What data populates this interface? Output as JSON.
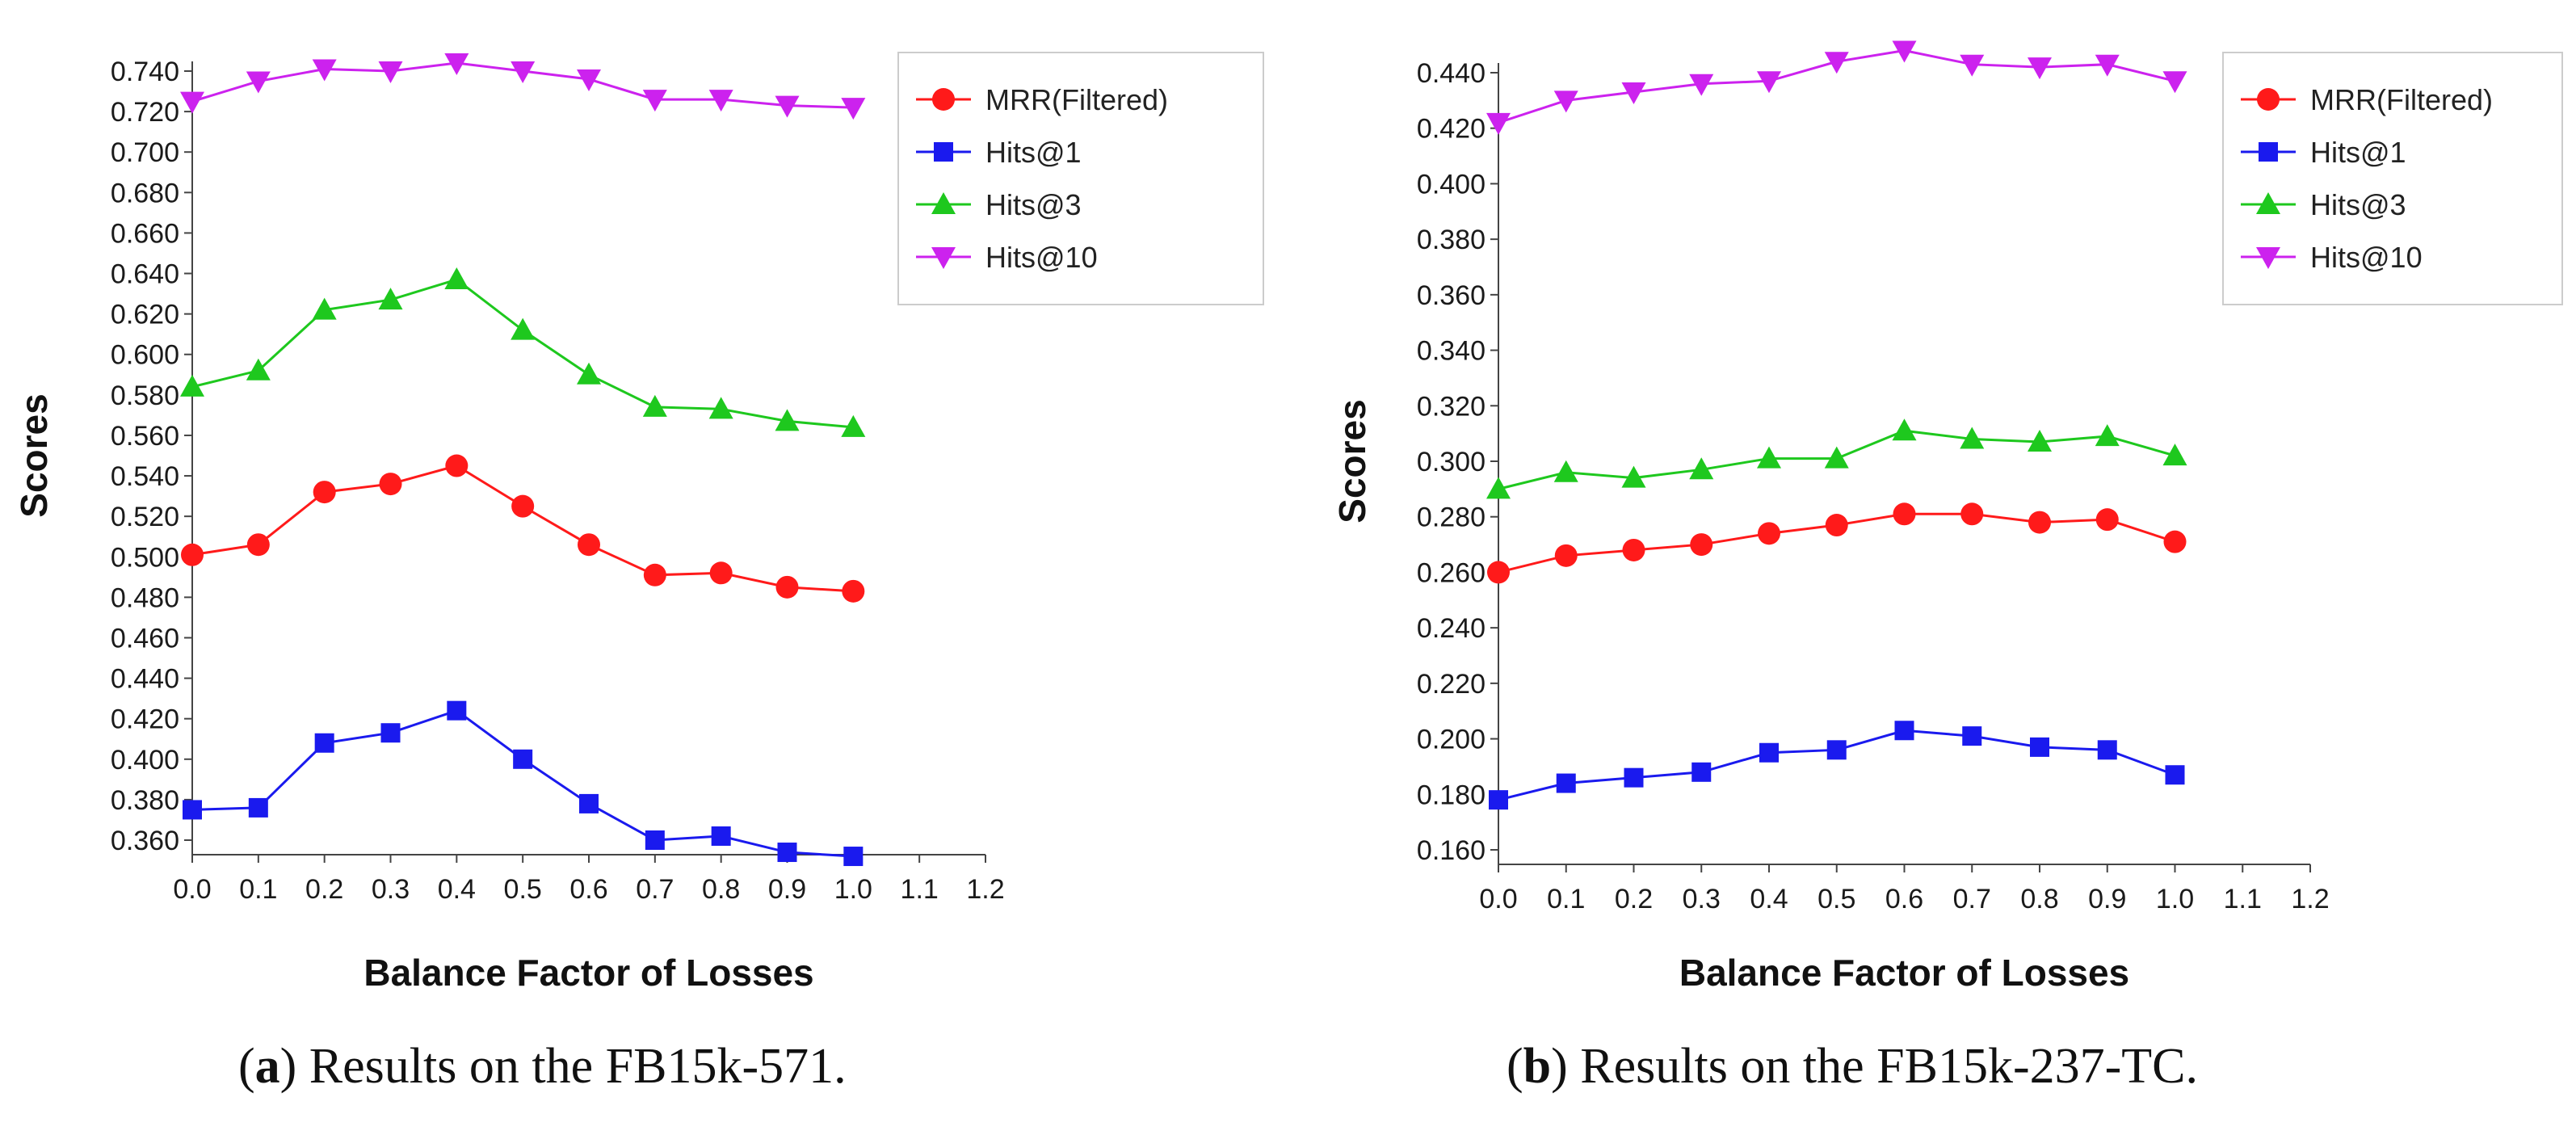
{
  "chart_data": [
    {
      "type": "line",
      "panel": "a",
      "xlabel": "Balance Factor of Losses",
      "ylabel": "Scores",
      "xlim": [
        0.0,
        1.2
      ],
      "ylim": [
        0.36,
        0.74
      ],
      "x_ticks": [
        "0.0",
        "0.1",
        "0.2",
        "0.3",
        "0.4",
        "0.5",
        "0.6",
        "0.7",
        "0.8",
        "0.9",
        "1.0",
        "1.1",
        "1.2"
      ],
      "y_ticks": [
        "0.360",
        "0.380",
        "0.400",
        "0.420",
        "0.440",
        "0.460",
        "0.480",
        "0.500",
        "0.520",
        "0.540",
        "0.560",
        "0.580",
        "0.600",
        "0.620",
        "0.640",
        "0.660",
        "0.680",
        "0.700",
        "0.720",
        "0.740"
      ],
      "x": [
        0.0,
        0.1,
        0.2,
        0.3,
        0.4,
        0.5,
        0.6,
        0.7,
        0.8,
        0.9,
        1.0
      ],
      "legend_position": "top-right",
      "series": [
        {
          "name": "MRR(Filtered)",
          "color": "#ff1a1a",
          "marker": "circle",
          "values": [
            0.501,
            0.506,
            0.532,
            0.536,
            0.545,
            0.525,
            0.506,
            0.491,
            0.492,
            0.485,
            0.483
          ]
        },
        {
          "name": "Hits@1",
          "color": "#1a1aee",
          "marker": "square",
          "values": [
            0.375,
            0.376,
            0.408,
            0.413,
            0.424,
            0.4,
            0.378,
            0.36,
            0.362,
            0.354,
            0.352
          ]
        },
        {
          "name": "Hits@3",
          "color": "#1ec81e",
          "marker": "triangle-up",
          "values": [
            0.584,
            0.592,
            0.622,
            0.627,
            0.637,
            0.612,
            0.59,
            0.574,
            0.573,
            0.567,
            0.564
          ]
        },
        {
          "name": "Hits@10",
          "color": "#cc22ee",
          "marker": "triangle-down",
          "values": [
            0.725,
            0.735,
            0.741,
            0.74,
            0.744,
            0.74,
            0.736,
            0.726,
            0.726,
            0.723,
            0.722
          ]
        }
      ]
    },
    {
      "type": "line",
      "panel": "b",
      "xlabel": "Balance Factor of Losses",
      "ylabel": "Scores",
      "xlim": [
        0.0,
        1.2
      ],
      "ylim": [
        0.16,
        0.44
      ],
      "x_ticks": [
        "0.0",
        "0.1",
        "0.2",
        "0.3",
        "0.4",
        "0.5",
        "0.6",
        "0.7",
        "0.8",
        "0.9",
        "1.0",
        "1.1",
        "1.2"
      ],
      "y_ticks": [
        "0.160",
        "0.180",
        "0.200",
        "0.220",
        "0.240",
        "0.260",
        "0.280",
        "0.300",
        "0.320",
        "0.340",
        "0.360",
        "0.380",
        "0.400",
        "0.420",
        "0.440"
      ],
      "x": [
        0.0,
        0.1,
        0.2,
        0.3,
        0.4,
        0.5,
        0.6,
        0.7,
        0.8,
        0.9,
        1.0
      ],
      "legend_position": "top-right",
      "series": [
        {
          "name": "MRR(Filtered)",
          "color": "#ff1a1a",
          "marker": "circle",
          "values": [
            0.26,
            0.266,
            0.268,
            0.27,
            0.274,
            0.277,
            0.281,
            0.281,
            0.278,
            0.279,
            0.271
          ]
        },
        {
          "name": "Hits@1",
          "color": "#1a1aee",
          "marker": "square",
          "values": [
            0.178,
            0.184,
            0.186,
            0.188,
            0.195,
            0.196,
            0.203,
            0.201,
            0.197,
            0.196,
            0.187
          ]
        },
        {
          "name": "Hits@3",
          "color": "#1ec81e",
          "marker": "triangle-up",
          "values": [
            0.29,
            0.296,
            0.294,
            0.297,
            0.301,
            0.301,
            0.311,
            0.308,
            0.307,
            0.309,
            0.302
          ]
        },
        {
          "name": "Hits@10",
          "color": "#cc22ee",
          "marker": "triangle-down",
          "values": [
            0.422,
            0.43,
            0.433,
            0.436,
            0.437,
            0.444,
            0.448,
            0.443,
            0.442,
            0.443,
            0.437
          ]
        }
      ]
    }
  ],
  "captions": [
    {
      "label": "a",
      "text": ") Results on the FB15k-571."
    },
    {
      "label": "b",
      "text": ") Results on the FB15k-237-TC."
    }
  ]
}
